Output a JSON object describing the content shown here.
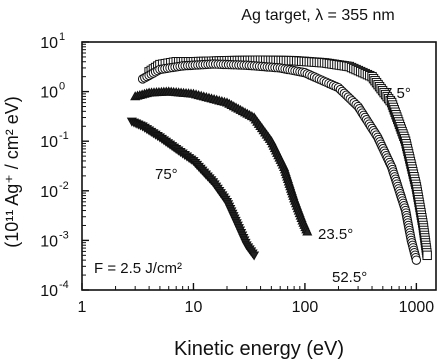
{
  "chart_data": {
    "type": "scatter",
    "title": "Ag target, λ = 355 nm",
    "xlabel": "Kinetic energy (eV)",
    "ylabel": "(10¹¹ Ag⁺ / cm² eV)",
    "x_scale": "log",
    "y_scale": "log",
    "xlim": [
      1,
      1500
    ],
    "ylim": [
      0.0001,
      10
    ],
    "x_ticks": [
      {
        "value": 1,
        "label": "1"
      },
      {
        "value": 10,
        "label": "10"
      },
      {
        "value": 100,
        "label": "100"
      },
      {
        "value": 1000,
        "label": "1000"
      }
    ],
    "y_ticks": [
      {
        "value": 10,
        "label": "10^1"
      },
      {
        "value": 1,
        "label": "10^0"
      },
      {
        "value": 0.1,
        "label": "10^-1"
      },
      {
        "value": 0.01,
        "label": "10^-2"
      },
      {
        "value": 0.001,
        "label": "10^-3"
      },
      {
        "value": 0.0001,
        "label": "10^-4"
      }
    ],
    "fluence_label": "F = 2.5 J/cm²",
    "series": [
      {
        "name": "7.5°",
        "marker": "square",
        "points": [
          [
            4,
            2.5
          ],
          [
            5,
            3.5
          ],
          [
            7,
            4
          ],
          [
            10,
            4
          ],
          [
            20,
            4.2
          ],
          [
            40,
            4.3
          ],
          [
            80,
            4.2
          ],
          [
            150,
            3.8
          ],
          [
            250,
            3.2
          ],
          [
            400,
            2.0
          ],
          [
            600,
            0.6
          ],
          [
            800,
            0.1
          ],
          [
            1000,
            0.012
          ],
          [
            1150,
            0.002
          ],
          [
            1250,
            0.0005
          ]
        ]
      },
      {
        "name": "23.5°",
        "marker": "circle",
        "points": [
          [
            3.5,
            1.8
          ],
          [
            5,
            2.8
          ],
          [
            8,
            3.3
          ],
          [
            15,
            3.6
          ],
          [
            30,
            3.4
          ],
          [
            60,
            3.0
          ],
          [
            100,
            2.4
          ],
          [
            200,
            1.2
          ],
          [
            300,
            0.5
          ],
          [
            450,
            0.12
          ],
          [
            600,
            0.03
          ],
          [
            800,
            0.004
          ],
          [
            900,
            0.001
          ],
          [
            1000,
            0.0004
          ]
        ]
      },
      {
        "name": "52.5°",
        "marker": "triangle-up",
        "points": [
          [
            3,
            0.8
          ],
          [
            4,
            0.95
          ],
          [
            6,
            1.0
          ],
          [
            10,
            0.9
          ],
          [
            20,
            0.6
          ],
          [
            35,
            0.3
          ],
          [
            50,
            0.1
          ],
          [
            65,
            0.03
          ],
          [
            80,
            0.007
          ],
          [
            95,
            0.0025
          ],
          [
            105,
            0.0015
          ]
        ]
      },
      {
        "name": "75°",
        "marker": "triangle-down",
        "points": [
          [
            2.8,
            0.25
          ],
          [
            3.5,
            0.2
          ],
          [
            5,
            0.12
          ],
          [
            7,
            0.07
          ],
          [
            10,
            0.04
          ],
          [
            15,
            0.015
          ],
          [
            20,
            0.006
          ],
          [
            25,
            0.002
          ],
          [
            30,
            0.0008
          ],
          [
            35,
            0.0005
          ]
        ]
      }
    ],
    "series_labels": [
      "7.5°",
      "23.5°",
      "52.5°",
      "75°"
    ]
  }
}
